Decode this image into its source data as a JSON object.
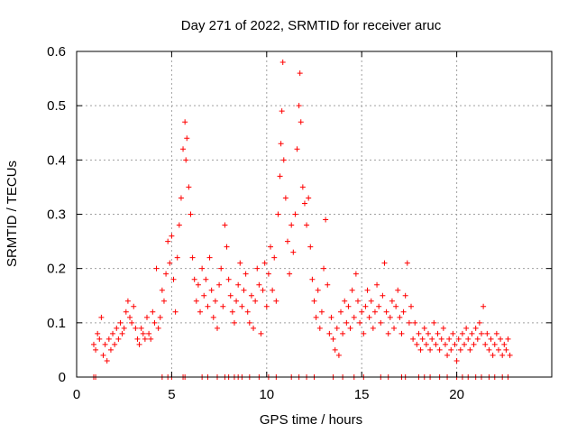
{
  "chart_data": {
    "type": "scatter",
    "title": "Day 271 of 2022, SRMTID for receiver aruc",
    "xlabel": "GPS time / hours",
    "ylabel": "SRMTID / TECUs",
    "xlim": [
      0,
      25
    ],
    "ylim": [
      0,
      0.6
    ],
    "xticks": [
      0,
      5,
      10,
      15,
      20
    ],
    "yticks": [
      0,
      0.1,
      0.2,
      0.3,
      0.4,
      0.5,
      0.6
    ],
    "xtick_labels": [
      "0",
      "5",
      "10",
      "15",
      "20"
    ],
    "ytick_labels": [
      "0",
      "0.1",
      "0.2",
      "0.3",
      "0.4",
      "0.5",
      "0.6"
    ],
    "grid": true,
    "marker": "+",
    "color": "#ff0000",
    "series_name": "SRMTID",
    "x_range_of_data": [
      0.9,
      22.8
    ],
    "points": [
      [
        0.9,
        0.06
      ],
      [
        1.0,
        0.05
      ],
      [
        1.1,
        0.08
      ],
      [
        1.2,
        0.07
      ],
      [
        1.3,
        0.11
      ],
      [
        1.4,
        0.04
      ],
      [
        1.5,
        0.06
      ],
      [
        1.6,
        0.03
      ],
      [
        1.7,
        0.07
      ],
      [
        1.8,
        0.05
      ],
      [
        1.9,
        0.08
      ],
      [
        2.0,
        0.06
      ],
      [
        2.1,
        0.09
      ],
      [
        2.2,
        0.07
      ],
      [
        2.3,
        0.1
      ],
      [
        2.4,
        0.08
      ],
      [
        2.5,
        0.09
      ],
      [
        2.6,
        0.12
      ],
      [
        2.7,
        0.14
      ],
      [
        2.8,
        0.11
      ],
      [
        2.9,
        0.1
      ],
      [
        3.0,
        0.13
      ],
      [
        3.1,
        0.09
      ],
      [
        3.2,
        0.07
      ],
      [
        3.3,
        0.06
      ],
      [
        3.4,
        0.09
      ],
      [
        3.5,
        0.08
      ],
      [
        3.6,
        0.07
      ],
      [
        3.7,
        0.11
      ],
      [
        3.8,
        0.08
      ],
      [
        3.9,
        0.07
      ],
      [
        4.0,
        0.12
      ],
      [
        4.1,
        0.1
      ],
      [
        4.2,
        0.2
      ],
      [
        4.3,
        0.09
      ],
      [
        4.4,
        0.11
      ],
      [
        4.5,
        0.16
      ],
      [
        4.6,
        0.14
      ],
      [
        4.7,
        0.19
      ],
      [
        4.8,
        0.25
      ],
      [
        4.9,
        0.21
      ],
      [
        5.0,
        0.26
      ],
      [
        5.1,
        0.18
      ],
      [
        5.2,
        0.12
      ],
      [
        5.3,
        0.22
      ],
      [
        5.4,
        0.28
      ],
      [
        5.5,
        0.33
      ],
      [
        5.6,
        0.42
      ],
      [
        5.7,
        0.47
      ],
      [
        5.75,
        0.4
      ],
      [
        5.8,
        0.44
      ],
      [
        5.9,
        0.35
      ],
      [
        6.0,
        0.3
      ],
      [
        6.1,
        0.22
      ],
      [
        6.2,
        0.18
      ],
      [
        6.3,
        0.14
      ],
      [
        6.4,
        0.17
      ],
      [
        6.5,
        0.12
      ],
      [
        6.6,
        0.2
      ],
      [
        6.7,
        0.15
      ],
      [
        6.8,
        0.18
      ],
      [
        6.9,
        0.13
      ],
      [
        7.0,
        0.22
      ],
      [
        7.1,
        0.16
      ],
      [
        7.2,
        0.11
      ],
      [
        7.3,
        0.14
      ],
      [
        7.4,
        0.09
      ],
      [
        7.5,
        0.17
      ],
      [
        7.6,
        0.2
      ],
      [
        7.7,
        0.13
      ],
      [
        7.8,
        0.28
      ],
      [
        7.9,
        0.24
      ],
      [
        8.0,
        0.18
      ],
      [
        8.1,
        0.15
      ],
      [
        8.2,
        0.12
      ],
      [
        8.3,
        0.1
      ],
      [
        8.4,
        0.14
      ],
      [
        8.5,
        0.17
      ],
      [
        8.6,
        0.21
      ],
      [
        8.7,
        0.13
      ],
      [
        8.8,
        0.16
      ],
      [
        8.9,
        0.19
      ],
      [
        9.0,
        0.12
      ],
      [
        9.1,
        0.1
      ],
      [
        9.2,
        0.15
      ],
      [
        9.3,
        0.09
      ],
      [
        9.4,
        0.14
      ],
      [
        9.5,
        0.2
      ],
      [
        9.6,
        0.17
      ],
      [
        9.7,
        0.08
      ],
      [
        9.8,
        0.16
      ],
      [
        9.9,
        0.21
      ],
      [
        10.0,
        0.13
      ],
      [
        10.1,
        0.19
      ],
      [
        10.2,
        0.24
      ],
      [
        10.3,
        0.16
      ],
      [
        10.4,
        0.22
      ],
      [
        10.5,
        0.14
      ],
      [
        10.6,
        0.3
      ],
      [
        10.7,
        0.37
      ],
      [
        10.75,
        0.43
      ],
      [
        10.8,
        0.49
      ],
      [
        10.85,
        0.58
      ],
      [
        10.9,
        0.4
      ],
      [
        11.0,
        0.33
      ],
      [
        11.1,
        0.25
      ],
      [
        11.2,
        0.19
      ],
      [
        11.3,
        0.28
      ],
      [
        11.4,
        0.23
      ],
      [
        11.5,
        0.3
      ],
      [
        11.6,
        0.42
      ],
      [
        11.7,
        0.5
      ],
      [
        11.75,
        0.56
      ],
      [
        11.8,
        0.47
      ],
      [
        11.9,
        0.35
      ],
      [
        12.0,
        0.32
      ],
      [
        12.1,
        0.28
      ],
      [
        12.2,
        0.33
      ],
      [
        12.3,
        0.24
      ],
      [
        12.4,
        0.18
      ],
      [
        12.5,
        0.14
      ],
      [
        12.6,
        0.11
      ],
      [
        12.7,
        0.16
      ],
      [
        12.8,
        0.09
      ],
      [
        12.9,
        0.12
      ],
      [
        13.0,
        0.2
      ],
      [
        13.1,
        0.29
      ],
      [
        13.2,
        0.17
      ],
      [
        13.3,
        0.08
      ],
      [
        13.4,
        0.11
      ],
      [
        13.5,
        0.07
      ],
      [
        13.6,
        0.05
      ],
      [
        13.7,
        0.09
      ],
      [
        13.8,
        0.04
      ],
      [
        13.9,
        0.12
      ],
      [
        14.0,
        0.08
      ],
      [
        14.1,
        0.14
      ],
      [
        14.2,
        0.1
      ],
      [
        14.3,
        0.13
      ],
      [
        14.4,
        0.09
      ],
      [
        14.5,
        0.16
      ],
      [
        14.6,
        0.11
      ],
      [
        14.7,
        0.19
      ],
      [
        14.8,
        0.14
      ],
      [
        14.9,
        0.1
      ],
      [
        15.0,
        0.12
      ],
      [
        15.1,
        0.08
      ],
      [
        15.2,
        0.13
      ],
      [
        15.3,
        0.16
      ],
      [
        15.4,
        0.11
      ],
      [
        15.5,
        0.14
      ],
      [
        15.6,
        0.09
      ],
      [
        15.7,
        0.12
      ],
      [
        15.8,
        0.17
      ],
      [
        15.9,
        0.13
      ],
      [
        16.0,
        0.1
      ],
      [
        16.1,
        0.15
      ],
      [
        16.2,
        0.21
      ],
      [
        16.3,
        0.12
      ],
      [
        16.4,
        0.08
      ],
      [
        16.5,
        0.11
      ],
      [
        16.6,
        0.14
      ],
      [
        16.7,
        0.09
      ],
      [
        16.8,
        0.13
      ],
      [
        16.9,
        0.16
      ],
      [
        17.0,
        0.11
      ],
      [
        17.1,
        0.08
      ],
      [
        17.2,
        0.12
      ],
      [
        17.3,
        0.15
      ],
      [
        17.4,
        0.21
      ],
      [
        17.5,
        0.1
      ],
      [
        17.6,
        0.13
      ],
      [
        17.7,
        0.07
      ],
      [
        17.8,
        0.1
      ],
      [
        17.9,
        0.06
      ],
      [
        18.0,
        0.08
      ],
      [
        18.1,
        0.05
      ],
      [
        18.2,
        0.07
      ],
      [
        18.3,
        0.09
      ],
      [
        18.4,
        0.06
      ],
      [
        18.5,
        0.08
      ],
      [
        18.6,
        0.05
      ],
      [
        18.7,
        0.07
      ],
      [
        18.8,
        0.1
      ],
      [
        18.9,
        0.06
      ],
      [
        19.0,
        0.08
      ],
      [
        19.1,
        0.05
      ],
      [
        19.2,
        0.07
      ],
      [
        19.3,
        0.09
      ],
      [
        19.4,
        0.06
      ],
      [
        19.5,
        0.04
      ],
      [
        19.6,
        0.07
      ],
      [
        19.7,
        0.05
      ],
      [
        19.8,
        0.08
      ],
      [
        19.9,
        0.06
      ],
      [
        20.0,
        0.03
      ],
      [
        20.1,
        0.07
      ],
      [
        20.2,
        0.05
      ],
      [
        20.3,
        0.08
      ],
      [
        20.4,
        0.06
      ],
      [
        20.5,
        0.09
      ],
      [
        20.6,
        0.07
      ],
      [
        20.7,
        0.05
      ],
      [
        20.8,
        0.08
      ],
      [
        20.9,
        0.06
      ],
      [
        21.0,
        0.09
      ],
      [
        21.1,
        0.07
      ],
      [
        21.2,
        0.1
      ],
      [
        21.3,
        0.08
      ],
      [
        21.4,
        0.13
      ],
      [
        21.5,
        0.06
      ],
      [
        21.6,
        0.08
      ],
      [
        21.7,
        0.05
      ],
      [
        21.8,
        0.07
      ],
      [
        21.9,
        0.04
      ],
      [
        22.0,
        0.06
      ],
      [
        22.1,
        0.08
      ],
      [
        22.2,
        0.05
      ],
      [
        22.3,
        0.07
      ],
      [
        22.4,
        0.04
      ],
      [
        22.5,
        0.06
      ],
      [
        22.6,
        0.05
      ],
      [
        22.7,
        0.07
      ],
      [
        22.8,
        0.04
      ],
      [
        0.9,
        0.0
      ],
      [
        1.0,
        0.0
      ],
      [
        4.5,
        0.0
      ],
      [
        4.8,
        0.0
      ],
      [
        5.0,
        0.0
      ],
      [
        5.6,
        0.0
      ],
      [
        5.7,
        0.0
      ],
      [
        6.6,
        0.0
      ],
      [
        6.9,
        0.0
      ],
      [
        7.4,
        0.0
      ],
      [
        7.8,
        0.0
      ],
      [
        8.0,
        0.0
      ],
      [
        8.3,
        0.0
      ],
      [
        8.5,
        0.0
      ],
      [
        8.7,
        0.0
      ],
      [
        9.1,
        0.0
      ],
      [
        9.6,
        0.0
      ],
      [
        10.1,
        0.0
      ],
      [
        10.5,
        0.0
      ],
      [
        11.3,
        0.0
      ],
      [
        11.7,
        0.0
      ],
      [
        12.1,
        0.0
      ],
      [
        12.5,
        0.0
      ],
      [
        13.5,
        0.0
      ],
      [
        14.0,
        0.0
      ],
      [
        14.6,
        0.0
      ],
      [
        15.1,
        0.0
      ],
      [
        16.0,
        0.0
      ],
      [
        16.4,
        0.0
      ],
      [
        17.1,
        0.0
      ],
      [
        17.3,
        0.0
      ],
      [
        18.0,
        0.0
      ],
      [
        18.3,
        0.0
      ],
      [
        18.6,
        0.0
      ],
      [
        19.1,
        0.0
      ],
      [
        19.5,
        0.0
      ],
      [
        20.0,
        0.0
      ],
      [
        20.3,
        0.0
      ],
      [
        20.6,
        0.0
      ],
      [
        21.0,
        0.0
      ],
      [
        21.3,
        0.0
      ],
      [
        21.7,
        0.0
      ],
      [
        22.0,
        0.0
      ],
      [
        22.4,
        0.0
      ],
      [
        22.7,
        0.0
      ]
    ]
  }
}
